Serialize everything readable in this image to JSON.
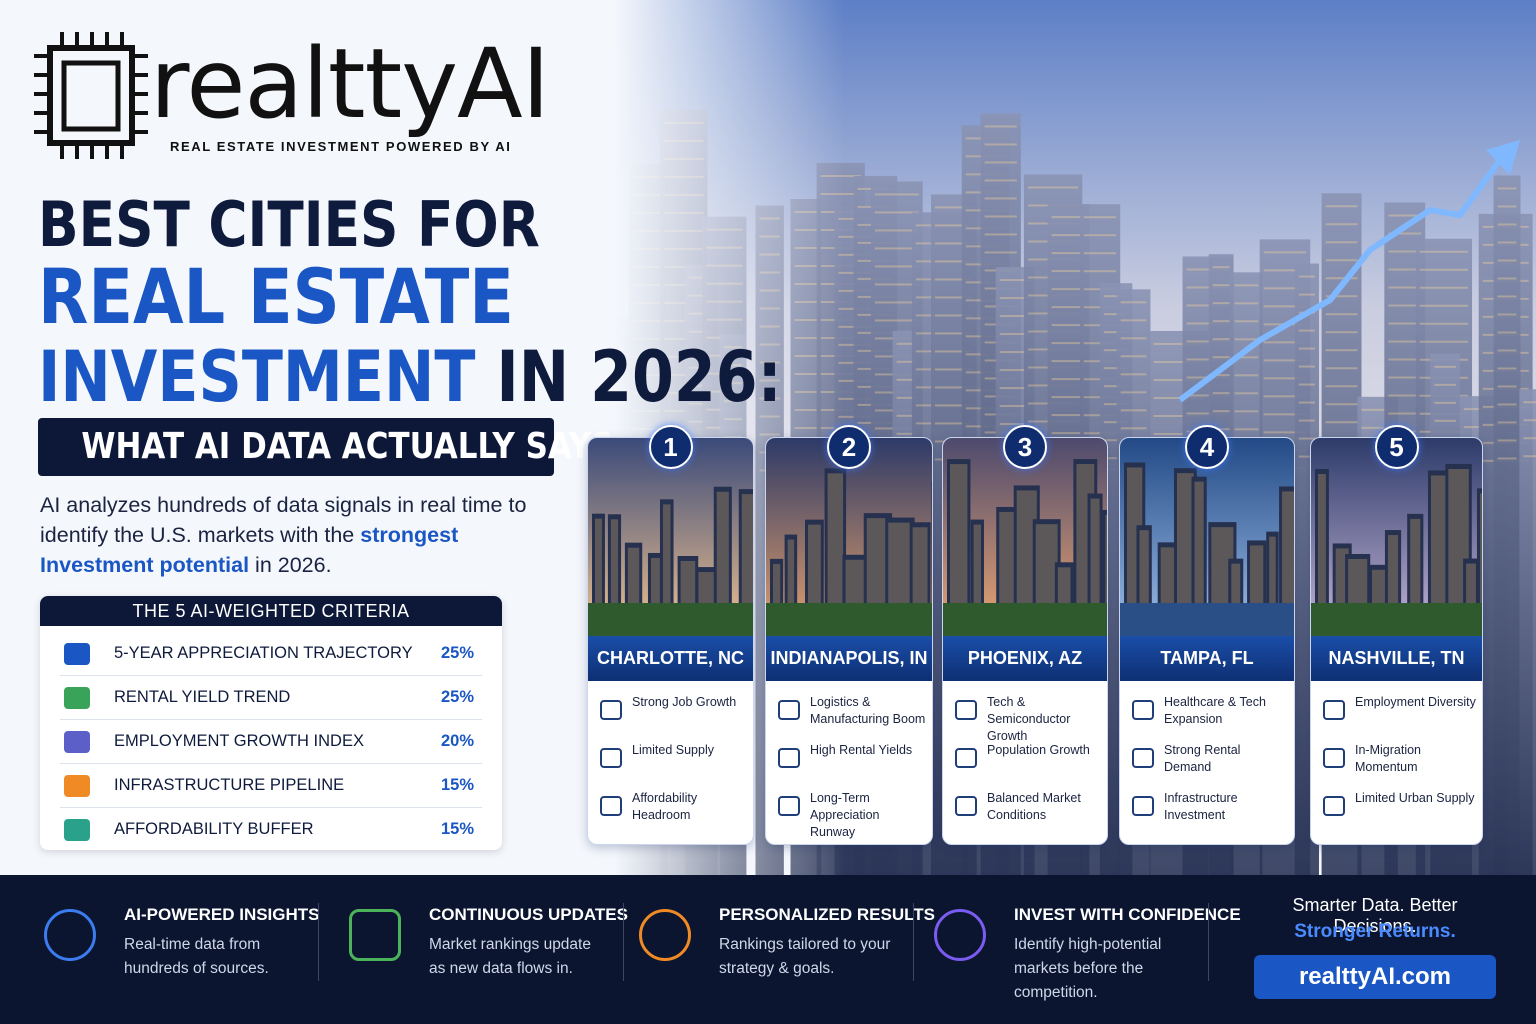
{
  "brand": {
    "name": "realttyAI",
    "tagline": "REAL ESTATE INVESTMENT POWERED BY AI"
  },
  "headline": {
    "line1": "BEST CITIES FOR",
    "line2": "REAL ESTATE",
    "line3_highlight": "INVESTMENT",
    "line3_rest": "IN 2026:",
    "subtitle": "WHAT AI DATA ACTUALLY SAYS"
  },
  "intro": {
    "text_before": "AI analyzes hundreds of data signals in real time to identify the U.S. markets with the",
    "highlight": "strongest Investment potential",
    "text_after": "in 2026."
  },
  "criteria": {
    "title": "THE 5 AI-WEIGHTED CRITERIA",
    "items": [
      {
        "label": "5-YEAR APPRECIATION TRAJECTORY",
        "weight": "25%"
      },
      {
        "label": "RENTAL YIELD TREND",
        "weight": "25%"
      },
      {
        "label": "EMPLOYMENT GROWTH INDEX",
        "weight": "20%"
      },
      {
        "label": "INFRASTRUCTURE PIPELINE",
        "weight": "15%"
      },
      {
        "label": "AFFORDABILITY BUFFER",
        "weight": "15%"
      }
    ]
  },
  "cities": [
    {
      "rank": 1,
      "name": "CHARLOTTE, NC",
      "features": [
        "Strong Job Growth",
        "Limited Supply",
        "Affordability Headroom"
      ]
    },
    {
      "rank": 2,
      "name": "INDIANAPOLIS, IN",
      "features": [
        "Logistics & Manufacturing Boom",
        "High Rental Yields",
        "Long-Term Appreciation Runway"
      ]
    },
    {
      "rank": 3,
      "name": "PHOENIX, AZ",
      "features": [
        "Tech & Semiconductor Growth",
        "Population Growth",
        "Balanced Market Conditions"
      ]
    },
    {
      "rank": 4,
      "name": "TAMPA, FL",
      "features": [
        "Healthcare & Tech Expansion",
        "Strong Rental Demand",
        "Infrastructure Investment"
      ]
    },
    {
      "rank": 5,
      "name": "NASHVILLE, TN",
      "features": [
        "Employment Diversity",
        "In-Migration Momentum",
        "Limited Urban Supply"
      ]
    }
  ],
  "footer": {
    "features": [
      {
        "title": "AI-POWERED INSIGHTS",
        "text": "Real-time data from hundreds of sources."
      },
      {
        "title": "CONTINUOUS UPDATES",
        "text": "Market rankings update as new data flows in."
      },
      {
        "title": "PERSONALIZED RESULTS",
        "text": "Rankings tailored to your strategy & goals."
      },
      {
        "title": "INVEST WITH CONFIDENCE",
        "text": "Identify high-potential markets before the competition."
      }
    ],
    "tagline": "Smarter Data. Better Decisions.",
    "tagline_highlight": "Stronger Returns.",
    "cta": "realttyAI.com"
  }
}
